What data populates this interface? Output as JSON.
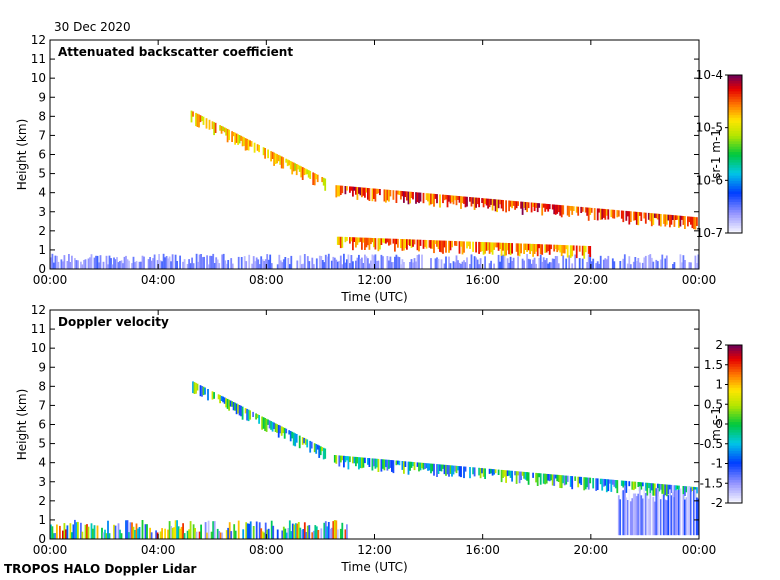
{
  "date": "30 Dec 2020",
  "footer": "TROPOS HALO Doppler Lidar",
  "chart_data": [
    {
      "type": "heatmap",
      "title": "Attenuated backscatter coefficient",
      "xlabel": "Time (UTC)",
      "ylabel": "Height (km)",
      "xticks": [
        "00:00",
        "04:00",
        "08:00",
        "12:00",
        "16:00",
        "20:00",
        "00:00"
      ],
      "xlim": [
        0,
        24
      ],
      "ylim": [
        0,
        12
      ],
      "yticks": [
        0,
        1,
        2,
        3,
        4,
        5,
        6,
        7,
        8,
        9,
        10,
        11,
        12
      ],
      "colorbar": {
        "label": "sr-1 m-1",
        "scale": "log",
        "range": [
          1e-07,
          0.0001
        ],
        "ticks": [
          "10-7",
          "10-6",
          "10-5",
          "10-4"
        ],
        "tick_values": [
          -7,
          -6,
          -5,
          -4
        ]
      },
      "features": [
        {
          "name": "boundary-layer",
          "t": [
            0,
            24
          ],
          "h": [
            0,
            0.8
          ],
          "log10": -6.6
        },
        {
          "name": "descending-cloud",
          "t": [
            5.2,
            10.2
          ],
          "h": [
            8.3,
            4.7
          ],
          "log10": -4.8
        },
        {
          "name": "mid-cloud-top",
          "t": [
            10.5,
            24
          ],
          "h": [
            4.4,
            2.7
          ],
          "log10": -4.4
        },
        {
          "name": "low-cloud-layer",
          "t": [
            10.5,
            20.0
          ],
          "h": [
            1.7,
            1.2
          ],
          "log10": -4.6
        }
      ]
    },
    {
      "type": "heatmap",
      "title": "Doppler velocity",
      "xlabel": "Time (UTC)",
      "ylabel": "Height (km)",
      "xticks": [
        "00:00",
        "04:00",
        "08:00",
        "12:00",
        "16:00",
        "20:00",
        "00:00"
      ],
      "xlim": [
        0,
        24
      ],
      "ylim": [
        0,
        12
      ],
      "yticks": [
        0,
        1,
        2,
        3,
        4,
        5,
        6,
        7,
        8,
        9,
        10,
        11,
        12
      ],
      "colorbar": {
        "label": "m s-1",
        "scale": "linear",
        "range": [
          -2,
          2
        ],
        "ticks": [
          "2",
          "1.5",
          "1",
          "0.5",
          "0",
          "-0.5",
          "-1",
          "-1.5",
          "-2"
        ],
        "tick_values": [
          2,
          1.5,
          1,
          0.5,
          0,
          -0.5,
          -1,
          -1.5,
          -2
        ]
      },
      "features": [
        {
          "name": "boundary-layer",
          "t": [
            0,
            11
          ],
          "h": [
            0,
            1.0
          ],
          "ms": 0
        },
        {
          "name": "descending-cloud",
          "t": [
            5.2,
            10.2
          ],
          "h": [
            8.3,
            4.7
          ],
          "ms": -0.3
        },
        {
          "name": "mid-cloud",
          "t": [
            10.5,
            24
          ],
          "h": [
            4.4,
            2.7
          ],
          "ms": -0.4
        },
        {
          "name": "precip-fall",
          "t": [
            21,
            24
          ],
          "h": [
            2.8,
            0.2
          ],
          "ms": -1.5
        }
      ]
    }
  ]
}
